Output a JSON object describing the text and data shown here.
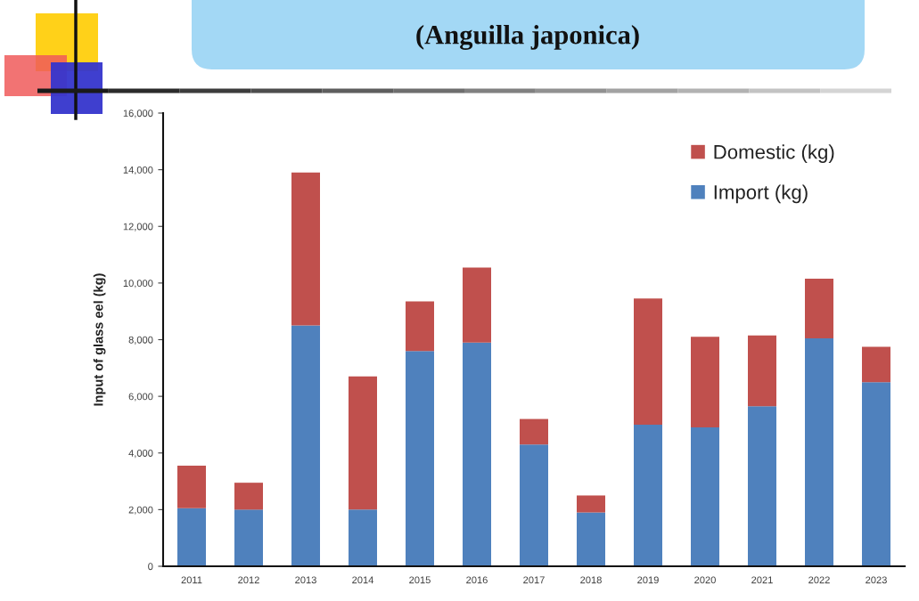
{
  "chart_data": {
    "type": "bar",
    "title": "(Anguilla japonica)",
    "ylabel": "Input of glass eel (kg)",
    "categories": [
      "2011",
      "2012",
      "2013",
      "2014",
      "2015",
      "2016",
      "2017",
      "2018",
      "2019",
      "2020",
      "2021",
      "2022",
      "2023"
    ],
    "stacked": true,
    "series": [
      {
        "name": "Import (kg)",
        "color": "#4f81bd",
        "values": [
          2050,
          2000,
          8500,
          2000,
          7600,
          7900,
          4300,
          1900,
          5000,
          4900,
          5650,
          8050,
          6500
        ]
      },
      {
        "name": "Domestic (kg)",
        "color": "#c0504d",
        "values": [
          1500,
          950,
          5400,
          4700,
          1750,
          2650,
          900,
          600,
          4450,
          3200,
          2500,
          2100,
          1250
        ]
      }
    ],
    "ylim": [
      0,
      16000
    ],
    "yticks": [
      0,
      {
        "value": 2000,
        "label": "2,000"
      },
      {
        "value": 4000,
        "label": "4,000"
      },
      {
        "value": 6000,
        "label": "6,000"
      },
      {
        "value": 8000,
        "label": "8,000"
      },
      {
        "value": 10000,
        "label": "10,000"
      },
      {
        "value": 12000,
        "label": "12,000"
      },
      {
        "value": 14000,
        "label": "14,000"
      },
      {
        "value": 16000,
        "label": "16,000"
      }
    ],
    "legend": "top right"
  }
}
